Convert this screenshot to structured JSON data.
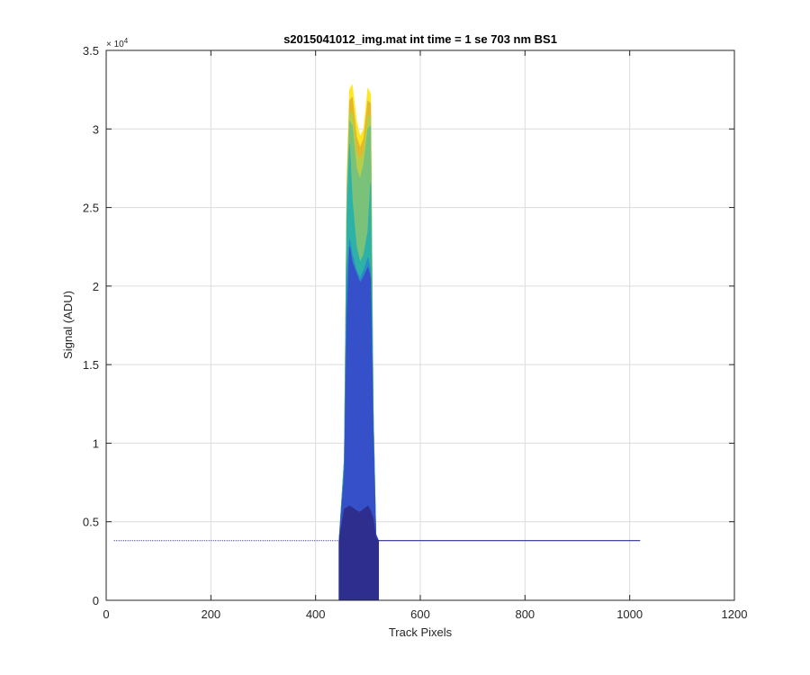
{
  "chart_data": {
    "type": "area",
    "title": "s2015041012_img.mat int time = 1 se  703 nm BS1",
    "xlabel": "Track Pixels",
    "ylabel": "Signal (ADU)",
    "y_exponent_base": "× 10",
    "y_exponent_power": "4",
    "xlim": [
      0,
      1200
    ],
    "ylim": [
      0,
      35000
    ],
    "x_ticks": [
      0,
      200,
      400,
      600,
      800,
      1000,
      1200
    ],
    "x_tick_labels": [
      "0",
      "200",
      "400",
      "600",
      "800",
      "1000",
      "1200"
    ],
    "y_ticks": [
      0,
      5000,
      10000,
      15000,
      20000,
      25000,
      30000,
      35000
    ],
    "y_tick_labels": [
      "0",
      "0.5",
      "1",
      "1.5",
      "2",
      "2.5",
      "3",
      "3.5"
    ],
    "grid": true,
    "baseline": 3800,
    "data_x_range": [
      15,
      1020
    ],
    "series": [
      {
        "color": "#fde725",
        "x": [
          445,
          455,
          460,
          465,
          470,
          478,
          485,
          492,
          500,
          505,
          510,
          515,
          520
        ],
        "y": [
          3800,
          9000,
          27000,
          32500,
          32800,
          30500,
          29500,
          30000,
          32600,
          32200,
          12000,
          4200,
          3800
        ]
      },
      {
        "color": "#e2b92c",
        "x": [
          445,
          455,
          460,
          465,
          470,
          478,
          485,
          492,
          500,
          505,
          510,
          515,
          520
        ],
        "y": [
          3800,
          9000,
          26500,
          31800,
          32000,
          29500,
          28800,
          29400,
          31800,
          31600,
          12000,
          4200,
          3800
        ]
      },
      {
        "color": "#b5cf4a",
        "x": [
          445,
          455,
          460,
          465,
          470,
          478,
          485,
          492,
          500,
          505,
          510,
          515,
          520
        ],
        "y": [
          3800,
          9000,
          26000,
          31000,
          31000,
          28500,
          28000,
          28600,
          30800,
          30800,
          12000,
          4200,
          3800
        ]
      },
      {
        "color": "#7ac27a",
        "x": [
          445,
          455,
          460,
          465,
          470,
          478,
          485,
          492,
          500,
          505,
          510,
          515,
          520
        ],
        "y": [
          3800,
          9000,
          25800,
          30500,
          30200,
          27500,
          26800,
          27800,
          30000,
          30200,
          12000,
          4200,
          3800
        ]
      },
      {
        "color": "#2eb2a7",
        "x": [
          445,
          455,
          460,
          465,
          470,
          478,
          485,
          492,
          500,
          505,
          510,
          515,
          520
        ],
        "y": [
          3800,
          9000,
          24500,
          29000,
          25500,
          22500,
          21500,
          22000,
          23500,
          26500,
          12000,
          4200,
          3800
        ]
      },
      {
        "color": "#2a8bc7",
        "x": [
          445,
          455,
          460,
          465,
          470,
          478,
          485,
          492,
          500,
          505,
          510,
          515,
          520
        ],
        "y": [
          3800,
          8500,
          21000,
          23000,
          22000,
          21000,
          20500,
          21000,
          21800,
          21000,
          11000,
          4200,
          3800
        ]
      },
      {
        "color": "#3550c8",
        "x": [
          445,
          455,
          460,
          465,
          470,
          478,
          485,
          492,
          500,
          505,
          510,
          515,
          520
        ],
        "y": [
          3800,
          8000,
          18000,
          22500,
          21500,
          20800,
          20200,
          20600,
          21200,
          20500,
          10500,
          4200,
          3800
        ]
      },
      {
        "color": "#2e2e8f",
        "x": [
          445,
          455,
          460,
          465,
          470,
          478,
          485,
          492,
          500,
          505,
          510,
          515,
          520
        ],
        "y": [
          3800,
          5800,
          5900,
          6000,
          5900,
          5700,
          5600,
          5800,
          6000,
          5700,
          5200,
          4000,
          3800
        ]
      }
    ]
  }
}
